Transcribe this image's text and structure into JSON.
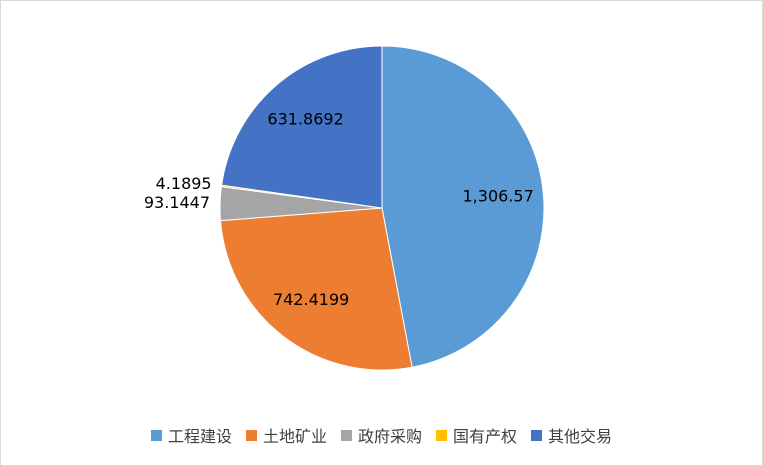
{
  "chart_data": {
    "type": "pie",
    "categories": [
      "工程建设",
      "土地矿业",
      "政府采购",
      "国有产权",
      "其他交易"
    ],
    "values": [
      1306.57,
      742.4199,
      93.1447,
      4.1895,
      631.8692
    ],
    "value_labels": [
      "1,306.57",
      "742.4199",
      "93.1447",
      "4.1895",
      "631.8692"
    ],
    "colors": [
      "#5b9bd5",
      "#ed7d31",
      "#a5a5a5",
      "#ffc000",
      "#4472c4"
    ]
  }
}
